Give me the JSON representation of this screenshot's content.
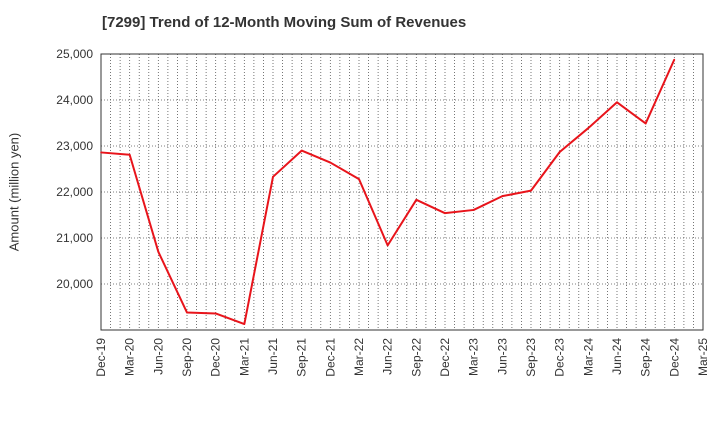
{
  "chart_data": {
    "type": "line",
    "title": "[7299]  Trend of 12-Month Moving Sum of Revenues",
    "xlabel": "",
    "ylabel": "Amount (million yen)",
    "ylim": [
      19000,
      25000
    ],
    "yticks": [
      20000,
      21000,
      22000,
      23000,
      24000,
      25000
    ],
    "ytick_labels": [
      "20,000",
      "21,000",
      "22,000",
      "23,000",
      "24,000",
      "25,000"
    ],
    "x_tick_labels": [
      "Dec-19",
      "Mar-20",
      "Jun-20",
      "Sep-20",
      "Dec-20",
      "Mar-21",
      "Jun-21",
      "Sep-21",
      "Dec-21",
      "Mar-22",
      "Jun-22",
      "Sep-22",
      "Dec-22",
      "Mar-23",
      "Jun-23",
      "Sep-23",
      "Dec-23",
      "Mar-24",
      "Jun-24",
      "Sep-24",
      "Dec-24",
      "Mar-25"
    ],
    "grid": true,
    "series": [
      {
        "color": "#e8141b",
        "x": [
          "Dec-19",
          "Mar-20",
          "Jun-20",
          "Sep-20",
          "Dec-20",
          "Mar-21",
          "Jun-21",
          "Sep-21",
          "Dec-21",
          "Mar-22",
          "Jun-22",
          "Sep-22",
          "Dec-22",
          "Mar-23",
          "Jun-23",
          "Sep-23",
          "Dec-23",
          "Mar-24",
          "Jun-24",
          "Sep-24",
          "Dec-24"
        ],
        "values": [
          22860,
          22810,
          20700,
          19380,
          19360,
          19130,
          22330,
          22900,
          22640,
          22280,
          20840,
          21830,
          21540,
          21610,
          21910,
          22030,
          22870,
          23390,
          23950,
          23490,
          24880
        ]
      }
    ]
  }
}
